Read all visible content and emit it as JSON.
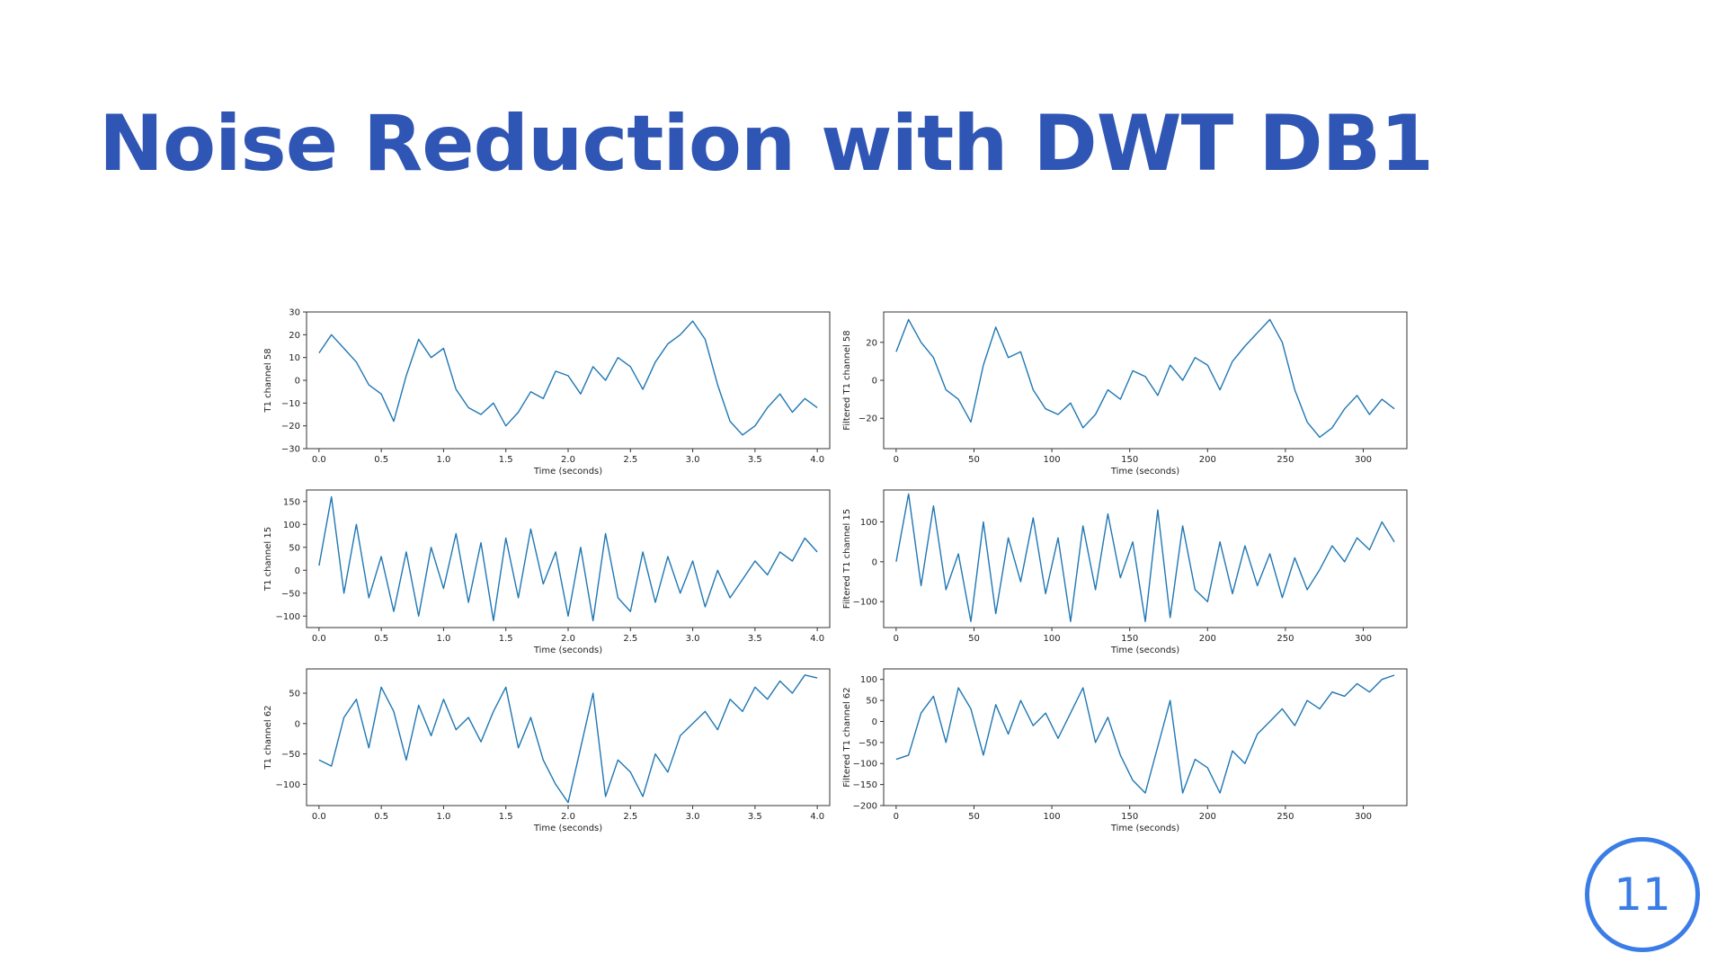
{
  "slide": {
    "title": "Noise Reduction with DWT DB1",
    "page_number": "11"
  },
  "colors": {
    "title": "#2f55b5",
    "line": "#1f77b4",
    "badge": "#3b7de6"
  },
  "chart_data": [
    {
      "type": "line",
      "ylabel": "T1 channel 58",
      "xlabel": "Time (seconds)",
      "xlim": [
        -0.1,
        4.1
      ],
      "ylim": [
        -30,
        30
      ],
      "xticks": [
        0.0,
        0.5,
        1.0,
        1.5,
        2.0,
        2.5,
        3.0,
        3.5,
        4.0
      ],
      "xtick_labels": [
        "0.0",
        "0.5",
        "1.0",
        "1.5",
        "2.0",
        "2.5",
        "3.0",
        "3.5",
        "4.0"
      ],
      "yticks": [
        -30,
        -20,
        -10,
        0,
        10,
        20,
        30
      ],
      "ytick_labels": [
        "−30",
        "−20",
        "−10",
        "0",
        "10",
        "20",
        "30"
      ],
      "x": [
        0.0,
        0.1,
        0.2,
        0.3,
        0.4,
        0.5,
        0.6,
        0.7,
        0.8,
        0.9,
        1.0,
        1.1,
        1.2,
        1.3,
        1.4,
        1.5,
        1.6,
        1.7,
        1.8,
        1.9,
        2.0,
        2.1,
        2.2,
        2.3,
        2.4,
        2.5,
        2.6,
        2.7,
        2.8,
        2.9,
        3.0,
        3.1,
        3.2,
        3.3,
        3.4,
        3.5,
        3.6,
        3.7,
        3.8,
        3.9,
        4.0
      ],
      "y": [
        12,
        20,
        14,
        8,
        -2,
        -6,
        -18,
        2,
        18,
        10,
        14,
        -4,
        -12,
        -15,
        -10,
        -20,
        -14,
        -5,
        -8,
        4,
        2,
        -6,
        6,
        0,
        10,
        6,
        -4,
        8,
        16,
        20,
        26,
        18,
        -2,
        -18,
        -24,
        -20,
        -12,
        -6,
        -14,
        -8,
        -12
      ]
    },
    {
      "type": "line",
      "ylabel": "Filtered T1 channel 58",
      "xlabel": "Time (seconds)",
      "xlim": [
        -8,
        328
      ],
      "ylim": [
        -36,
        36
      ],
      "xticks": [
        0,
        50,
        100,
        150,
        200,
        250,
        300
      ],
      "xtick_labels": [
        "0",
        "50",
        "100",
        "150",
        "200",
        "250",
        "300"
      ],
      "yticks": [
        -20,
        0,
        20
      ],
      "ytick_labels": [
        "−20",
        "0",
        "20"
      ],
      "x": [
        0,
        8,
        16,
        24,
        32,
        40,
        48,
        56,
        64,
        72,
        80,
        88,
        96,
        104,
        112,
        120,
        128,
        136,
        144,
        152,
        160,
        168,
        176,
        184,
        192,
        200,
        208,
        216,
        224,
        232,
        240,
        248,
        256,
        264,
        272,
        280,
        288,
        296,
        304,
        312,
        320
      ],
      "y": [
        15,
        32,
        20,
        12,
        -5,
        -10,
        -22,
        8,
        28,
        12,
        15,
        -5,
        -15,
        -18,
        -12,
        -25,
        -18,
        -5,
        -10,
        5,
        2,
        -8,
        8,
        0,
        12,
        8,
        -5,
        10,
        18,
        25,
        32,
        20,
        -5,
        -22,
        -30,
        -25,
        -15,
        -8,
        -18,
        -10,
        -15
      ]
    },
    {
      "type": "line",
      "ylabel": "T1 channel 15",
      "xlabel": "Time (seconds)",
      "xlim": [
        -0.1,
        4.1
      ],
      "ylim": [
        -125,
        175
      ],
      "xticks": [
        0.0,
        0.5,
        1.0,
        1.5,
        2.0,
        2.5,
        3.0,
        3.5,
        4.0
      ],
      "xtick_labels": [
        "0.0",
        "0.5",
        "1.0",
        "1.5",
        "2.0",
        "2.5",
        "3.0",
        "3.5",
        "4.0"
      ],
      "yticks": [
        -100,
        -50,
        0,
        50,
        100,
        150
      ],
      "ytick_labels": [
        "−100",
        "−50",
        "0",
        "50",
        "100",
        "150"
      ],
      "x": [
        0.0,
        0.1,
        0.2,
        0.3,
        0.4,
        0.5,
        0.6,
        0.7,
        0.8,
        0.9,
        1.0,
        1.1,
        1.2,
        1.3,
        1.4,
        1.5,
        1.6,
        1.7,
        1.8,
        1.9,
        2.0,
        2.1,
        2.2,
        2.3,
        2.4,
        2.5,
        2.6,
        2.7,
        2.8,
        2.9,
        3.0,
        3.1,
        3.2,
        3.3,
        3.4,
        3.5,
        3.6,
        3.7,
        3.8,
        3.9,
        4.0
      ],
      "y": [
        10,
        160,
        -50,
        100,
        -60,
        30,
        -90,
        40,
        -100,
        50,
        -40,
        80,
        -70,
        60,
        -110,
        70,
        -60,
        90,
        -30,
        40,
        -100,
        50,
        -110,
        80,
        -60,
        -90,
        40,
        -70,
        30,
        -50,
        20,
        -80,
        0,
        -60,
        -20,
        20,
        -10,
        40,
        20,
        70,
        40
      ]
    },
    {
      "type": "line",
      "ylabel": "Filtered T1 channel 15",
      "xlabel": "Time (seconds)",
      "xlim": [
        -8,
        328
      ],
      "ylim": [
        -165,
        180
      ],
      "xticks": [
        0,
        50,
        100,
        150,
        200,
        250,
        300
      ],
      "xtick_labels": [
        "0",
        "50",
        "100",
        "150",
        "200",
        "250",
        "300"
      ],
      "yticks": [
        -100,
        0,
        100
      ],
      "ytick_labels": [
        "−100",
        "0",
        "100"
      ],
      "x": [
        0,
        8,
        16,
        24,
        32,
        40,
        48,
        56,
        64,
        72,
        80,
        88,
        96,
        104,
        112,
        120,
        128,
        136,
        144,
        152,
        160,
        168,
        176,
        184,
        192,
        200,
        208,
        216,
        224,
        232,
        240,
        248,
        256,
        264,
        272,
        280,
        288,
        296,
        304,
        312,
        320
      ],
      "y": [
        0,
        170,
        -60,
        140,
        -70,
        20,
        -150,
        100,
        -130,
        60,
        -50,
        110,
        -80,
        60,
        -150,
        90,
        -70,
        120,
        -40,
        50,
        -150,
        130,
        -140,
        90,
        -70,
        -100,
        50,
        -80,
        40,
        -60,
        20,
        -90,
        10,
        -70,
        -20,
        40,
        0,
        60,
        30,
        100,
        50
      ]
    },
    {
      "type": "line",
      "ylabel": "T1 channel 62",
      "xlabel": "Time (seconds)",
      "xlim": [
        -0.1,
        4.1
      ],
      "ylim": [
        -135,
        90
      ],
      "xticks": [
        0.0,
        0.5,
        1.0,
        1.5,
        2.0,
        2.5,
        3.0,
        3.5,
        4.0
      ],
      "xtick_labels": [
        "0.0",
        "0.5",
        "1.0",
        "1.5",
        "2.0",
        "2.5",
        "3.0",
        "3.5",
        "4.0"
      ],
      "yticks": [
        -100,
        -50,
        0,
        50
      ],
      "ytick_labels": [
        "−100",
        "−50",
        "0",
        "50"
      ],
      "x": [
        0.0,
        0.1,
        0.2,
        0.3,
        0.4,
        0.5,
        0.6,
        0.7,
        0.8,
        0.9,
        1.0,
        1.1,
        1.2,
        1.3,
        1.4,
        1.5,
        1.6,
        1.7,
        1.8,
        1.9,
        2.0,
        2.1,
        2.2,
        2.3,
        2.4,
        2.5,
        2.6,
        2.7,
        2.8,
        2.9,
        3.0,
        3.1,
        3.2,
        3.3,
        3.4,
        3.5,
        3.6,
        3.7,
        3.8,
        3.9,
        4.0
      ],
      "y": [
        -60,
        -70,
        10,
        40,
        -40,
        60,
        20,
        -60,
        30,
        -20,
        40,
        -10,
        10,
        -30,
        20,
        60,
        -40,
        10,
        -60,
        -100,
        -130,
        -40,
        50,
        -120,
        -60,
        -80,
        -120,
        -50,
        -80,
        -20,
        0,
        20,
        -10,
        40,
        20,
        60,
        40,
        70,
        50,
        80,
        75
      ]
    },
    {
      "type": "line",
      "ylabel": "Filtered T1 channel 62",
      "xlabel": "Time (seconds)",
      "xlim": [
        -8,
        328
      ],
      "ylim": [
        -200,
        125
      ],
      "xticks": [
        0,
        50,
        100,
        150,
        200,
        250,
        300
      ],
      "xtick_labels": [
        "0",
        "50",
        "100",
        "150",
        "200",
        "250",
        "300"
      ],
      "yticks": [
        -200,
        -150,
        -100,
        -50,
        0,
        50,
        100
      ],
      "ytick_labels": [
        "−200",
        "−150",
        "−100",
        "−50",
        "0",
        "50",
        "100"
      ],
      "x": [
        0,
        8,
        16,
        24,
        32,
        40,
        48,
        56,
        64,
        72,
        80,
        88,
        96,
        104,
        112,
        120,
        128,
        136,
        144,
        152,
        160,
        168,
        176,
        184,
        192,
        200,
        208,
        216,
        224,
        232,
        240,
        248,
        256,
        264,
        272,
        280,
        288,
        296,
        304,
        312,
        320
      ],
      "y": [
        -90,
        -80,
        20,
        60,
        -50,
        80,
        30,
        -80,
        40,
        -30,
        50,
        -10,
        20,
        -40,
        20,
        80,
        -50,
        10,
        -80,
        -140,
        -170,
        -60,
        50,
        -170,
        -90,
        -110,
        -170,
        -70,
        -100,
        -30,
        0,
        30,
        -10,
        50,
        30,
        70,
        60,
        90,
        70,
        100,
        110
      ]
    }
  ]
}
